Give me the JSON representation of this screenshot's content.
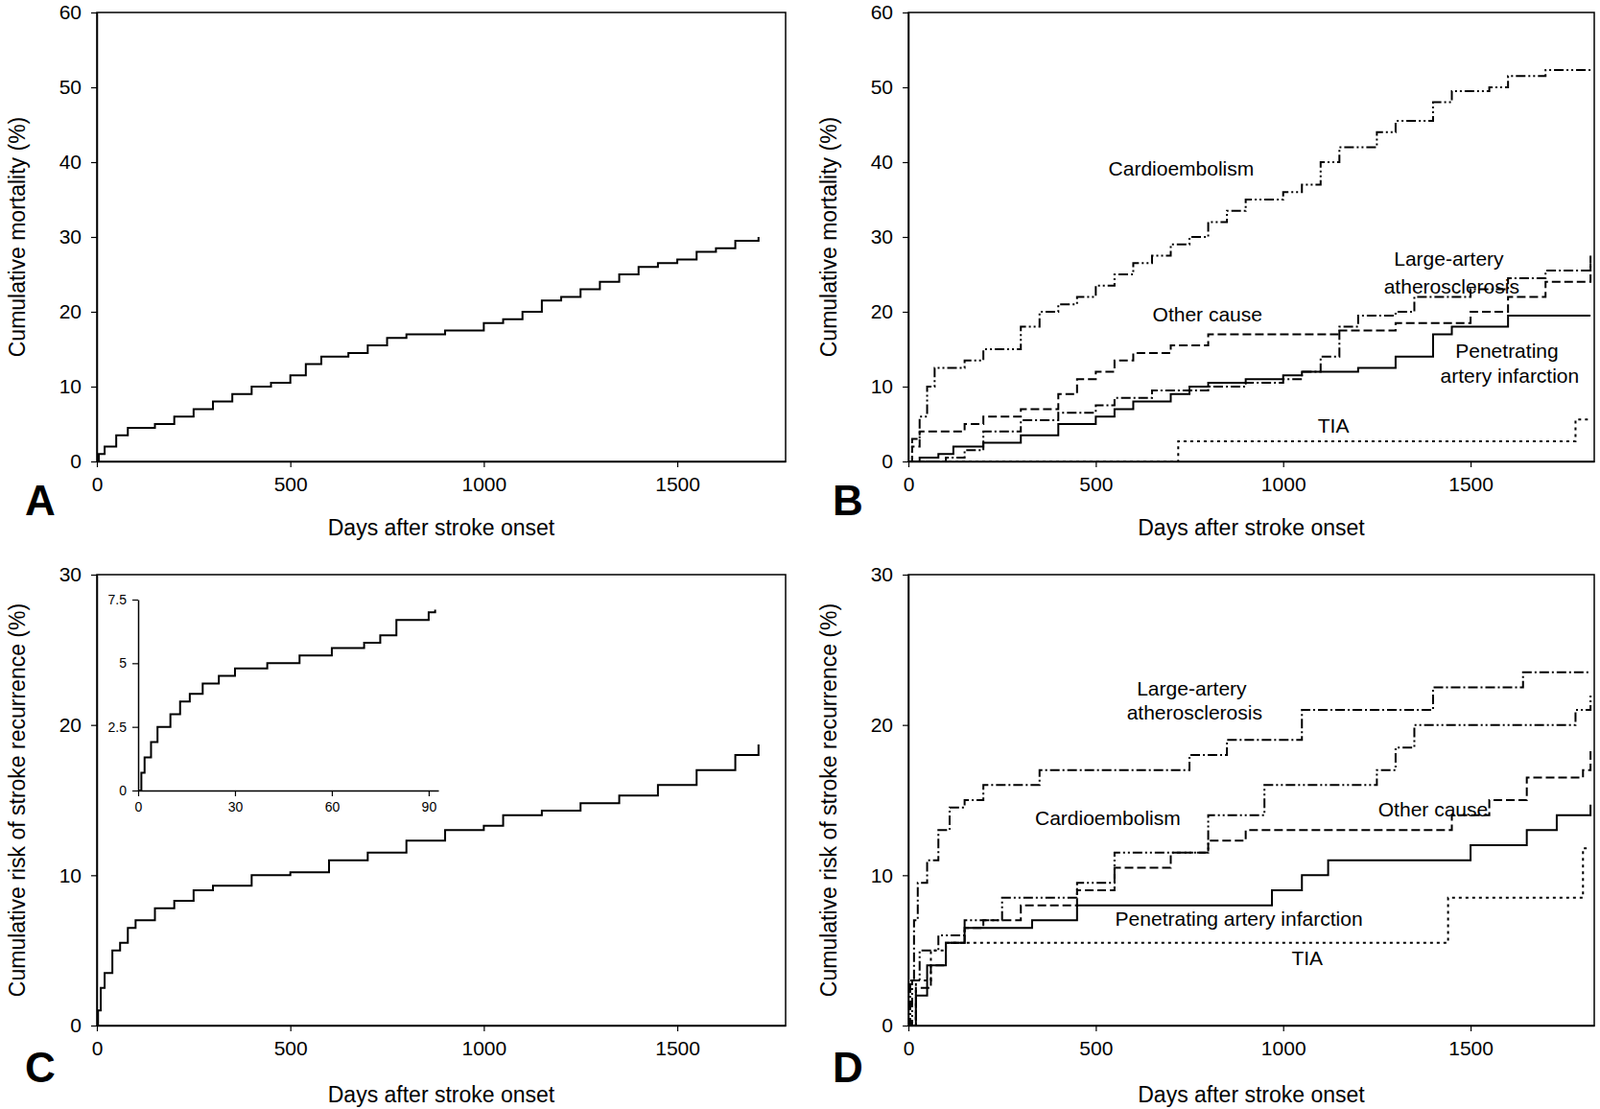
{
  "chart_data": [
    {
      "type": "line",
      "label": "A",
      "xlabel": "Days after stroke onset",
      "ylabel": "Cumulative mortality (%)",
      "xlim": [
        0,
        1780
      ],
      "xticks": [
        0,
        500,
        1000,
        1500
      ],
      "ylim": [
        0,
        60
      ],
      "yticks": [
        0,
        10,
        20,
        30,
        40,
        50,
        60
      ],
      "grid": false,
      "series": [
        {
          "color": "#000000",
          "line_style": "solid",
          "x": [
            0,
            5,
            20,
            50,
            80,
            150,
            200,
            250,
            300,
            350,
            400,
            450,
            500,
            540,
            580,
            650,
            700,
            750,
            800,
            900,
            1000,
            1050,
            1100,
            1150,
            1200,
            1250,
            1300,
            1350,
            1400,
            1450,
            1500,
            1550,
            1600,
            1650,
            1710
          ],
          "values": [
            0,
            1,
            2,
            3.5,
            4.5,
            5,
            6,
            7,
            8,
            9,
            10,
            10.5,
            11.5,
            13,
            14,
            14.5,
            15.5,
            16.5,
            17,
            17.5,
            18.5,
            19,
            20,
            21.5,
            22,
            23,
            24,
            25,
            26,
            26.5,
            27,
            28,
            28.5,
            29.5,
            30
          ]
        }
      ]
    },
    {
      "type": "line",
      "label": "B",
      "xlabel": "Days after stroke onset",
      "ylabel": "Cumulative mortality (%)",
      "xlim": [
        0,
        1830
      ],
      "xticks": [
        0,
        500,
        1000,
        1500
      ],
      "ylim": [
        0,
        60
      ],
      "yticks": [
        0,
        10,
        20,
        30,
        40,
        50,
        60
      ],
      "grid": false,
      "series": [
        {
          "name": "Cardioembolism",
          "color": "#000000",
          "line_style": "dash-dot-dot",
          "x": [
            0,
            10,
            30,
            50,
            70,
            150,
            200,
            300,
            350,
            400,
            450,
            500,
            550,
            600,
            650,
            700,
            750,
            800,
            850,
            900,
            1000,
            1050,
            1100,
            1150,
            1250,
            1300,
            1400,
            1450,
            1550,
            1600,
            1700,
            1820
          ],
          "values": [
            0,
            3,
            6,
            10,
            12.5,
            13.5,
            15,
            18,
            20,
            21,
            22,
            23.5,
            25,
            26.5,
            27.5,
            29,
            30,
            32,
            33.5,
            35,
            36,
            37,
            40,
            42,
            44,
            45.5,
            48,
            49.5,
            50,
            51.5,
            52.3,
            52.3
          ]
        },
        {
          "name": "Large-artery atherosclerosis",
          "color": "#000000",
          "line_style": "dash-dot",
          "x": [
            0,
            100,
            150,
            200,
            300,
            400,
            500,
            550,
            650,
            800,
            900,
            1000,
            1050,
            1100,
            1150,
            1200,
            1300,
            1350,
            1500,
            1600,
            1700,
            1820
          ],
          "values": [
            0,
            0.5,
            1.5,
            4,
            5.5,
            6.5,
            7.5,
            8.5,
            9.5,
            10,
            10.5,
            11,
            12,
            14,
            18,
            19.5,
            20,
            22,
            23,
            24.5,
            25.5,
            27.5
          ]
        },
        {
          "name": "Other cause",
          "color": "#000000",
          "line_style": "dashed",
          "x": [
            0,
            10,
            30,
            150,
            200,
            300,
            400,
            450,
            500,
            550,
            600,
            700,
            800,
            1100,
            1150,
            1300,
            1500,
            1600,
            1700,
            1820
          ],
          "values": [
            0,
            2,
            4,
            5,
            6,
            7,
            9,
            11,
            12,
            13.5,
            14.5,
            15.5,
            17,
            17,
            17.5,
            18.5,
            20,
            22,
            24,
            26.5
          ]
        },
        {
          "name": "Penetrating artery infarction",
          "color": "#000000",
          "line_style": "solid",
          "x": [
            0,
            30,
            80,
            120,
            200,
            300,
            400,
            500,
            550,
            600,
            700,
            750,
            800,
            900,
            1000,
            1050,
            1200,
            1300,
            1400,
            1450,
            1600,
            1820
          ],
          "values": [
            0,
            0.5,
            1,
            2,
            2.5,
            3.5,
            5,
            6,
            7,
            8,
            9,
            10,
            10.5,
            11,
            11.5,
            12,
            12.5,
            14,
            17,
            18,
            19.5,
            19.5
          ]
        },
        {
          "name": "TIA",
          "color": "#000000",
          "line_style": "dotted",
          "x": [
            0,
            720,
            1780,
            1820
          ],
          "values": [
            0,
            2.7,
            5.6,
            5.6
          ]
        }
      ]
    },
    {
      "type": "line",
      "label": "C",
      "xlabel": "Days after stroke onset",
      "ylabel": "Cumulative risk of stroke recurrence (%)",
      "xlim": [
        0,
        1780
      ],
      "xticks": [
        0,
        500,
        1000,
        1500
      ],
      "ylim": [
        0,
        30
      ],
      "yticks": [
        0,
        10,
        20,
        30
      ],
      "grid": false,
      "series": [
        {
          "color": "#000000",
          "line_style": "solid",
          "x": [
            0,
            3,
            10,
            20,
            40,
            60,
            80,
            100,
            150,
            200,
            250,
            300,
            400,
            500,
            600,
            700,
            800,
            900,
            1000,
            1050,
            1150,
            1250,
            1350,
            1450,
            1550,
            1650,
            1710
          ],
          "values": [
            0,
            1,
            2.5,
            3.5,
            5,
            5.5,
            6.5,
            7,
            7.8,
            8.3,
            9,
            9.3,
            10,
            10.2,
            11,
            11.5,
            12.3,
            13,
            13.3,
            14,
            14.3,
            14.8,
            15.3,
            16,
            17,
            18,
            18.7
          ]
        }
      ]
    },
    {
      "type": "line",
      "xlim": [
        0,
        93
      ],
      "xticks": [
        0,
        30,
        60,
        90
      ],
      "ylim": [
        0,
        7.5
      ],
      "yticks": [
        0,
        2.5,
        5,
        7.5
      ],
      "grid": false,
      "series": [
        {
          "color": "#000000",
          "line_style": "solid",
          "x": [
            0,
            1,
            2,
            4,
            6,
            10,
            13,
            16,
            20,
            25,
            30,
            40,
            50,
            60,
            70,
            75,
            80,
            90,
            92
          ],
          "values": [
            0,
            0.7,
            1.3,
            1.9,
            2.5,
            3,
            3.5,
            3.8,
            4.2,
            4.5,
            4.8,
            5,
            5.3,
            5.6,
            5.8,
            6.1,
            6.7,
            7,
            7.1
          ]
        }
      ]
    },
    {
      "type": "line",
      "label": "D",
      "xlabel": "Days after stroke onset",
      "ylabel": "Cumulative risk of stroke recurrence (%)",
      "xlim": [
        0,
        1830
      ],
      "xticks": [
        0,
        500,
        1000,
        1500
      ],
      "ylim": [
        0,
        30
      ],
      "yticks": [
        0,
        10,
        20,
        30
      ],
      "grid": false,
      "series": [
        {
          "name": "Large-artery atherosclerosis",
          "color": "#000000",
          "line_style": "dash-dot",
          "x": [
            0,
            5,
            15,
            25,
            50,
            80,
            110,
            150,
            200,
            350,
            750,
            850,
            1050,
            1400,
            1640,
            1820
          ],
          "values": [
            0,
            3,
            7,
            9.5,
            11,
            13,
            14.5,
            15,
            16,
            17,
            18,
            19,
            21,
            22.5,
            23.5,
            23.5
          ]
        },
        {
          "name": "Cardioembolism",
          "color": "#000000",
          "line_style": "dash-dot-dot",
          "x": [
            0,
            10,
            30,
            80,
            150,
            250,
            450,
            550,
            800,
            950,
            1250,
            1300,
            1350,
            1780,
            1820
          ],
          "values": [
            0,
            3,
            5,
            6,
            7,
            8.5,
            9.5,
            11.5,
            14,
            16,
            17,
            18.5,
            20,
            21,
            22
          ]
        },
        {
          "name": "Other cause",
          "color": "#000000",
          "line_style": "dashed",
          "x": [
            0,
            20,
            60,
            100,
            150,
            200,
            300,
            450,
            550,
            700,
            800,
            900,
            1450,
            1550,
            1650,
            1800,
            1820
          ],
          "values": [
            0,
            2.5,
            4,
            5.5,
            6.5,
            7,
            8,
            9,
            10.5,
            11.5,
            12.3,
            13,
            14,
            15,
            16.5,
            17,
            18.3
          ]
        },
        {
          "name": "Penetrating artery infarction",
          "color": "#000000",
          "line_style": "solid",
          "x": [
            0,
            20,
            50,
            100,
            150,
            330,
            450,
            970,
            1050,
            1120,
            1500,
            1650,
            1730,
            1820
          ],
          "values": [
            0,
            2,
            4,
            5.5,
            6.5,
            7,
            8,
            9,
            10,
            11,
            12,
            13,
            14,
            14.7
          ]
        },
        {
          "name": "TIA",
          "color": "#000000",
          "line_style": "dotted",
          "x": [
            0,
            20,
            60,
            100,
            1440,
            1800,
            1820
          ],
          "values": [
            0,
            3,
            5,
            5.5,
            8.5,
            11.8,
            11.8
          ]
        }
      ]
    }
  ]
}
